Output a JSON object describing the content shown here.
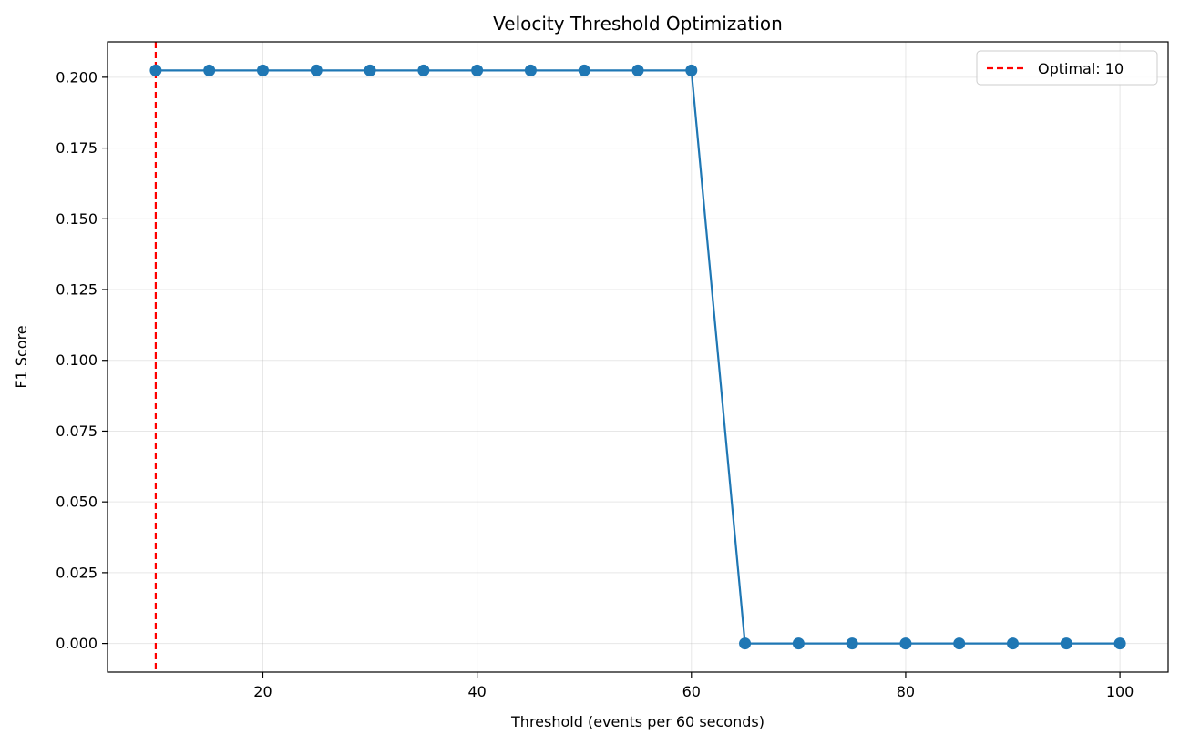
{
  "chart_data": {
    "type": "line",
    "title": "Velocity Threshold Optimization",
    "xlabel": "Threshold (events per 60 seconds)",
    "ylabel": "F1 Score",
    "xlim": [
      5.5,
      104.5
    ],
    "ylim": [
      -0.0101,
      0.2125
    ],
    "xticks": [
      20,
      40,
      60,
      80,
      100
    ],
    "xtick_labels": [
      "20",
      "40",
      "60",
      "80",
      "100"
    ],
    "yticks": [
      0.0,
      0.025,
      0.05,
      0.075,
      0.1,
      0.125,
      0.15,
      0.175,
      0.2
    ],
    "ytick_labels": [
      "0.000",
      "0.025",
      "0.050",
      "0.075",
      "0.100",
      "0.125",
      "0.150",
      "0.175",
      "0.200"
    ],
    "grid": true,
    "legend_position": "top-right",
    "series": [
      {
        "x": [
          10,
          15,
          20,
          25,
          30,
          35,
          40,
          45,
          50,
          55,
          60,
          65,
          70,
          75,
          80,
          85,
          90,
          95,
          100
        ],
        "y": [
          0.2024,
          0.2024,
          0.2024,
          0.2024,
          0.2024,
          0.2024,
          0.2024,
          0.2024,
          0.2024,
          0.2024,
          0.2024,
          0.0,
          0.0,
          0.0,
          0.0,
          0.0,
          0.0,
          0.0,
          0.0
        ],
        "color": "#1f77b4",
        "marker": "circle"
      }
    ],
    "reference_lines": [
      {
        "orientation": "vertical",
        "x": 10,
        "label": "Optimal: 10",
        "color": "#ff0000",
        "style": "dashed"
      }
    ]
  }
}
